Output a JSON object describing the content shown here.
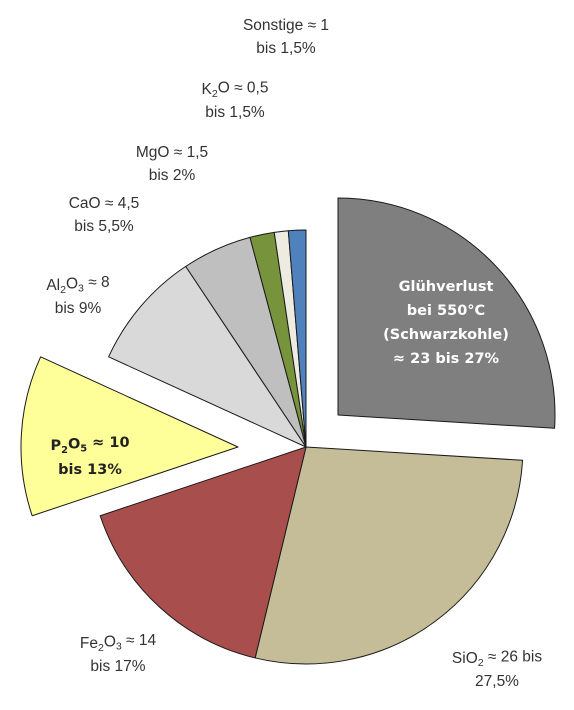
{
  "chart_data": {
    "type": "pie",
    "title": "",
    "slices": [
      {
        "key": "gluehverlust",
        "values": [
          23,
          27
        ],
        "color": "#7f7f7f",
        "exploded": true,
        "label_lines": [
          [
            {
              "t": "Glühverlust"
            }
          ],
          [
            {
              "t": "bei 550°C"
            }
          ],
          [
            {
              "t": "(Schwarzkohle)"
            }
          ],
          [
            {
              "t": "≈ 23 bis 27%"
            }
          ]
        ]
      },
      {
        "key": "sio2",
        "values": [
          26,
          27.5
        ],
        "color": "#c4bd97",
        "exploded": false,
        "label_lines": [
          [
            {
              "t": "SiO"
            },
            {
              "t": "2",
              "sub": true
            },
            {
              "t": " ≈ 26 bis"
            }
          ],
          [
            {
              "t": "27,5%"
            }
          ]
        ]
      },
      {
        "key": "fe2o3",
        "values": [
          14,
          17
        ],
        "color": "#a84f4e",
        "exploded": false,
        "label_lines": [
          [
            {
              "t": "Fe"
            },
            {
              "t": "2",
              "sub": true
            },
            {
              "t": "O"
            },
            {
              "t": "3",
              "sub": true
            },
            {
              "t": " ≈ 14"
            }
          ],
          [
            {
              "t": "bis 17%"
            }
          ]
        ]
      },
      {
        "key": "p2o5",
        "values": [
          10,
          13
        ],
        "color": "#ffff99",
        "exploded": true,
        "label_lines": [
          [
            {
              "t": "P"
            },
            {
              "t": "2",
              "sub": true
            },
            {
              "t": "O"
            },
            {
              "t": "5",
              "sub": true
            },
            {
              "t": " ≈ 10"
            }
          ],
          [
            {
              "t": "bis 13%"
            }
          ]
        ]
      },
      {
        "key": "al2o3",
        "values": [
          8,
          9
        ],
        "color": "#d9d9d9",
        "exploded": false,
        "label_lines": [
          [
            {
              "t": "Al"
            },
            {
              "t": "2",
              "sub": true
            },
            {
              "t": "O"
            },
            {
              "t": "3",
              "sub": true
            },
            {
              "t": " ≈ 8"
            }
          ],
          [
            {
              "t": "bis 9%"
            }
          ]
        ]
      },
      {
        "key": "cao",
        "values": [
          4.5,
          5.5
        ],
        "color": "#bfbfbf",
        "exploded": false,
        "label_lines": [
          [
            {
              "t": "CaO ≈ 4,5"
            }
          ],
          [
            {
              "t": "bis 5,5%"
            }
          ]
        ]
      },
      {
        "key": "mgo",
        "values": [
          1.5,
          2
        ],
        "color": "#77933c",
        "exploded": false,
        "label_lines": [
          [
            {
              "t": "MgO ≈ 1,5"
            }
          ],
          [
            {
              "t": "bis 2%"
            }
          ]
        ]
      },
      {
        "key": "k2o",
        "values": [
          0.5,
          1.5
        ],
        "color": "#eeece1",
        "exploded": false,
        "label_lines": [
          [
            {
              "t": "K"
            },
            {
              "t": "2",
              "sub": true
            },
            {
              "t": "O ≈ 0,5"
            }
          ],
          [
            {
              "t": "bis 1,5%"
            }
          ]
        ]
      },
      {
        "key": "sonstige",
        "values": [
          1,
          1.5
        ],
        "color": "#4f81bd",
        "exploded": false,
        "label_lines": [
          [
            {
              "t": "Sonstige ≈ 1"
            }
          ],
          [
            {
              "t": "bis 1,5%"
            }
          ]
        ]
      }
    ],
    "start_angle_deg": 0,
    "direction": "clockwise",
    "legend": "none",
    "grid": false
  }
}
